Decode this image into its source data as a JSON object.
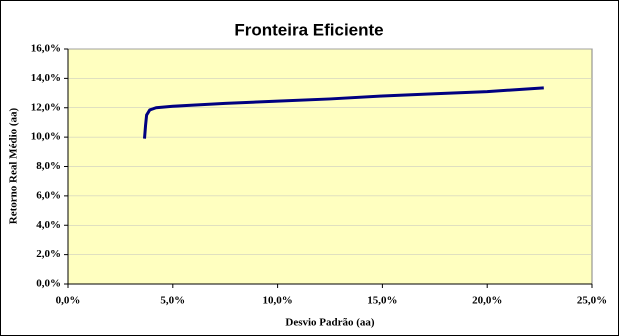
{
  "chart_data": {
    "type": "line",
    "title": "Fronteira Eficiente",
    "x_label": "Desvio Padrão (aa)",
    "y_label": "Retorno Real Médio (aa)",
    "series": [
      {
        "color": "#000080",
        "x": [
          3.65,
          3.7,
          3.75,
          3.9,
          4.2,
          5,
          7.5,
          10,
          12.5,
          15,
          17.5,
          20,
          22.7
        ],
        "values": [
          9.9,
          10.8,
          11.5,
          11.85,
          12.0,
          12.1,
          12.3,
          12.45,
          12.6,
          12.8,
          12.95,
          13.1,
          13.35
        ]
      }
    ],
    "xlim": [
      0,
      25
    ],
    "xticks": [
      {
        "value": 0,
        "label": "0,0%"
      },
      {
        "value": 5,
        "label": "5,0%"
      },
      {
        "value": 10,
        "label": "10,0%"
      },
      {
        "value": 15,
        "label": "15,0%"
      },
      {
        "value": 20,
        "label": "20,0%"
      },
      {
        "value": 25,
        "label": "25,0%"
      }
    ],
    "ylim": [
      0,
      16
    ],
    "yticks": [
      {
        "value": 0,
        "label": "0,0%"
      },
      {
        "value": 2,
        "label": "2,0%"
      },
      {
        "value": 4,
        "label": "4,0%"
      },
      {
        "value": 6,
        "label": "6,0%"
      },
      {
        "value": 8,
        "label": "8,0%"
      },
      {
        "value": 10,
        "label": "10,0%"
      },
      {
        "value": 12,
        "label": "12,0%"
      },
      {
        "value": 14,
        "label": "14,0%"
      },
      {
        "value": 16,
        "label": "16,0%"
      }
    ],
    "grid": true
  }
}
